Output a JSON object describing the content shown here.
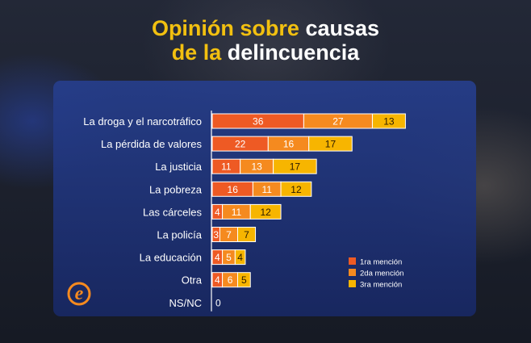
{
  "title": {
    "line1_a": "Opinión sobre",
    "line1_b": "causas",
    "line2_a": "de la",
    "line2_b": "delincuencia"
  },
  "colors": {
    "accent_yellow": "#f2c010",
    "series1": "#ee5a24",
    "series2": "#f58a1f",
    "series3": "#f7b500"
  },
  "logo": {
    "glyph": "e",
    "icon": "e-logo-icon"
  },
  "chart_data": {
    "type": "bar",
    "orientation": "horizontal",
    "stacked": true,
    "categories": [
      "La droga y el narcotráfico",
      "La pérdida de valores",
      "La justicia",
      "La pobreza",
      "Las cárceles",
      "La policía",
      "La educación",
      "Otra",
      "NS/NC"
    ],
    "series": [
      {
        "name": "1ra mención",
        "values": [
          36,
          22,
          11,
          16,
          4,
          3,
          4,
          4,
          0
        ]
      },
      {
        "name": "2da mención",
        "values": [
          27,
          16,
          13,
          11,
          11,
          7,
          5,
          6,
          0
        ]
      },
      {
        "name": "3ra mención",
        "values": [
          13,
          17,
          17,
          12,
          12,
          7,
          4,
          5,
          0
        ]
      }
    ],
    "total_labels": {
      "NS/NC": "0"
    },
    "title": "Opinión sobre causas de la delincuencia",
    "xlabel": "",
    "ylabel": "",
    "xlim": [
      0,
      76
    ],
    "legend_position": "bottom-right",
    "grid": false
  }
}
